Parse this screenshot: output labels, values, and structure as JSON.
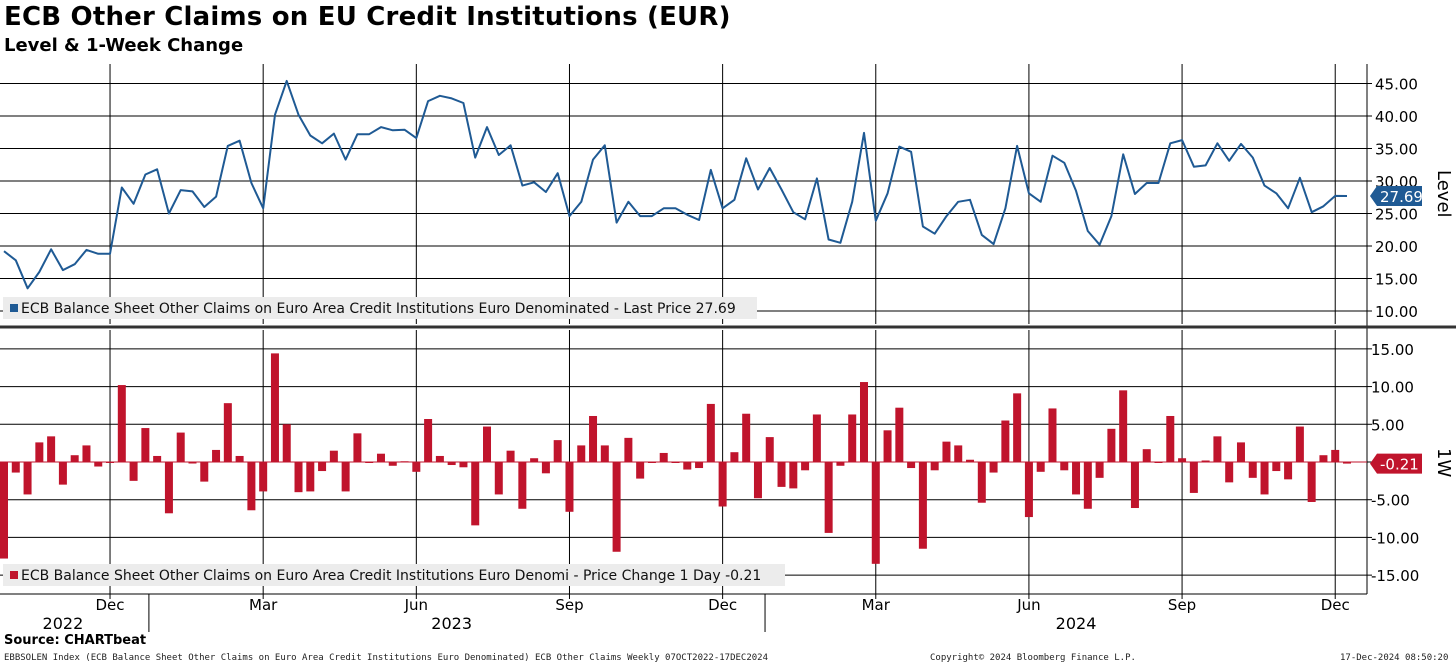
{
  "header": {
    "title": "ECB Other Claims on EU Credit Institutions (EUR)",
    "subtitle": "Level & 1-Week Change"
  },
  "footer": {
    "source": "Source: CHARTbeat",
    "description": "EBBSOLEN Index (ECB Balance Sheet Other Claims on Euro Area Credit Institutions Euro Denominated) ECB Other Claims  Weekly 07OCT2022-17DEC2024",
    "copyright": "Copyright© 2024 Bloomberg Finance L.P.",
    "timestamp": "17-Dec-2024 08:50:20"
  },
  "colors": {
    "level": "#1f5a94",
    "change": "#c0142c"
  },
  "chart_data": [
    {
      "type": "line",
      "name": "level-panel",
      "axis_label": "Level",
      "ylim": [
        8,
        48
      ],
      "yticks": [
        10,
        15,
        20,
        25,
        30,
        35,
        40,
        45
      ],
      "ytick_labels": [
        "10.00",
        "15.00",
        "20.00",
        "25.00",
        "30.00",
        "35.00",
        "40.00",
        "45.00"
      ],
      "legend": "ECB Balance Sheet Other Claims on Euro Area Credit Institutions Euro Denominated - Last Price 27.69",
      "last_value_label": "27.69",
      "series": [
        {
          "name": "ECB Balance Sheet Other Claims on Euro Area Credit Institutions Euro Denominated",
          "values": [
            19.2,
            17.8,
            13.5,
            16.0,
            19.5,
            16.3,
            17.2,
            19.4,
            18.8,
            18.8,
            29.0,
            26.5,
            31.0,
            31.8,
            25.0,
            28.6,
            28.4,
            26.0,
            27.6,
            35.4,
            36.2,
            29.7,
            25.8,
            40.2,
            45.4,
            40.2,
            37.0,
            35.8,
            37.3,
            33.3,
            37.2,
            37.2,
            38.3,
            37.8,
            37.9,
            36.6,
            42.3,
            43.1,
            42.7,
            42.0,
            33.6,
            38.3,
            34.0,
            35.5,
            29.3,
            29.8,
            28.3,
            31.2,
            24.6,
            26.8,
            33.3,
            35.5,
            23.6,
            26.8,
            24.6,
            24.6,
            25.8,
            25.8,
            24.8,
            24.0,
            31.7,
            25.8,
            27.1,
            33.5,
            28.7,
            32.0,
            28.7,
            25.2,
            24.1,
            30.4,
            21.0,
            20.5,
            26.8,
            37.4,
            23.9,
            28.1,
            35.3,
            34.5,
            23.0,
            21.9,
            24.6,
            26.8,
            27.1,
            21.7,
            20.3,
            25.8,
            35.4,
            28.1,
            26.8,
            33.9,
            32.8,
            28.5,
            22.3,
            20.2,
            24.6,
            34.1,
            28.0,
            29.7,
            29.7,
            35.8,
            36.3,
            32.2,
            32.4,
            35.8,
            33.1,
            35.7,
            33.6,
            29.3,
            28.1,
            25.8,
            30.5,
            25.2,
            26.1,
            27.7,
            27.69
          ]
        }
      ]
    },
    {
      "type": "bar",
      "name": "change-panel",
      "axis_label": "1W",
      "ylim": [
        -17.5,
        17.5
      ],
      "yticks": [
        -15,
        -10,
        -5,
        0,
        5,
        10,
        15
      ],
      "ytick_labels": [
        "-15.00",
        "-10.00",
        "-5.00",
        "",
        "5.00",
        "10.00",
        "15.00"
      ],
      "legend": "ECB Balance Sheet Other Claims on Euro Area Credit Institutions Euro Denomi - Price Change 1 Day -0.21",
      "last_value_label": "-0.21",
      "series": [
        {
          "name": "ECB Balance Sheet Other Claims on Euro Area Credit Institutions Euro Denomi - Price Change 1 Day",
          "values": [
            -12.8,
            -1.4,
            -4.3,
            2.6,
            3.4,
            -3.0,
            0.9,
            2.2,
            -0.6,
            0.0,
            10.2,
            -2.5,
            4.5,
            0.8,
            -6.8,
            3.9,
            -0.2,
            -2.6,
            1.6,
            7.8,
            0.8,
            -6.4,
            -3.9,
            14.4,
            5.0,
            -4.0,
            -3.9,
            -1.2,
            1.5,
            -3.9,
            3.8,
            0.0,
            1.1,
            -0.5,
            0.1,
            -1.3,
            5.7,
            0.8,
            -0.4,
            -0.7,
            -8.4,
            4.7,
            -4.3,
            1.5,
            -6.2,
            0.5,
            -1.5,
            2.9,
            -6.6,
            2.2,
            6.1,
            2.2,
            -11.9,
            3.2,
            -2.2,
            0.0,
            1.2,
            0.0,
            -1.0,
            -0.8,
            7.7,
            -5.9,
            1.3,
            6.4,
            -4.8,
            3.3,
            -3.3,
            -3.5,
            -1.1,
            6.3,
            -9.4,
            -0.5,
            6.3,
            10.6,
            -13.5,
            4.2,
            7.2,
            -0.8,
            -11.5,
            -1.1,
            2.7,
            2.2,
            0.3,
            -5.4,
            -1.4,
            5.5,
            9.1,
            -7.3,
            -1.3,
            7.1,
            -1.1,
            -4.3,
            -6.2,
            -2.1,
            4.4,
            9.5,
            -6.1,
            1.7,
            0.0,
            6.1,
            0.5,
            -4.1,
            0.2,
            3.4,
            -2.7,
            2.6,
            -2.1,
            -4.3,
            -1.2,
            -2.3,
            4.7,
            -5.3,
            0.9,
            1.6,
            -0.21
          ]
        }
      ]
    }
  ],
  "xaxis": {
    "months": [
      {
        "label": "Dec",
        "pos": 9
      },
      {
        "label": "Mar",
        "pos": 22
      },
      {
        "label": "Jun",
        "pos": 35
      },
      {
        "label": "Sep",
        "pos": 48
      },
      {
        "label": "Dec",
        "pos": 61
      },
      {
        "label": "Mar",
        "pos": 74
      },
      {
        "label": "Jun",
        "pos": 87
      },
      {
        "label": "Sep",
        "pos": 100
      },
      {
        "label": "Dec",
        "pos": 113
      }
    ],
    "years": [
      {
        "label": "2022",
        "pos": 5
      },
      {
        "label": "2023",
        "pos": 38
      },
      {
        "label": "2024",
        "pos": 91
      }
    ],
    "year_boundaries": [
      12.3,
      64.6
    ]
  }
}
